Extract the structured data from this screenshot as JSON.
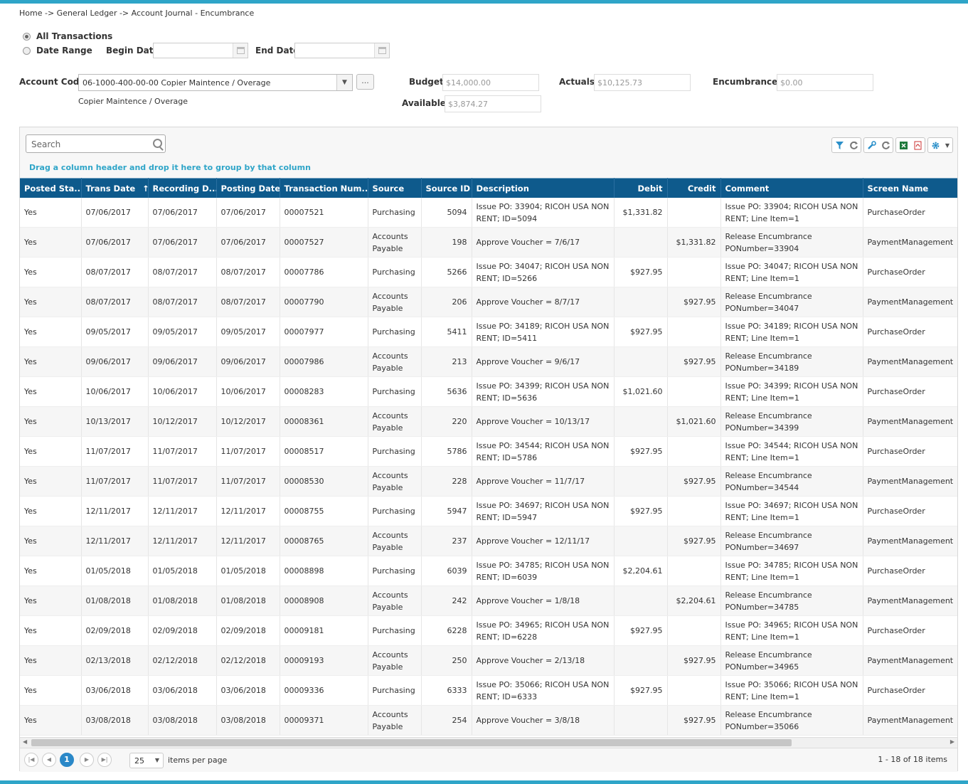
{
  "breadcrumb": "Home -> General Ledger -> Account Journal - Encumbrance",
  "filters": {
    "all_transactions_label": "All Transactions",
    "date_range_label": "Date Range",
    "begin_date_label": "Begin Date",
    "begin_date_value": "",
    "end_date_label": "End Date",
    "end_date_value": "",
    "selected": "All Transactions"
  },
  "account": {
    "label": "Account Code:",
    "value": "06-1000-400-00-00 Copier Maintence / Overage",
    "description": "Copier Maintence / Overage",
    "lookup_button": "..."
  },
  "summary": {
    "budget_label": "Budget:",
    "budget_value": "$14,000.00",
    "actuals_label": "Actuals:",
    "actuals_value": "$10,125.73",
    "encumbrances_label": "Encumbrances:",
    "encumbrances_value": "$0.00",
    "available_label": "Available:",
    "available_value": "$3,874.27"
  },
  "grid": {
    "search_placeholder": "Search",
    "group_hint": "Drag a column header and drop it here to group by that column",
    "toolbar_icons": [
      "filter-icon",
      "refresh-icon",
      "wrench-icon",
      "reset-icon",
      "excel-icon",
      "pdf-icon",
      "gear-icon",
      "chevron-down-icon"
    ],
    "columns": [
      "Posted Sta...",
      "Trans Date",
      "Recording D...",
      "Posting Date",
      "Transaction Num...",
      "Source",
      "Source ID",
      "Description",
      "Debit",
      "Credit",
      "Comment",
      "Screen Name"
    ],
    "sort_indicator": "↑",
    "rows": [
      [
        "Yes",
        "07/06/2017",
        "07/06/2017",
        "07/06/2017",
        "00007521",
        "Purchasing",
        "5094",
        "Issue PO: 33904; RICOH USA NON RENT; ID=5094",
        "$1,331.82",
        "",
        "Issue PO: 33904; RICOH USA NON RENT; Line Item=1",
        "PurchaseOrder"
      ],
      [
        "Yes",
        "07/06/2017",
        "07/06/2017",
        "07/06/2017",
        "00007527",
        "Accounts Payable",
        "198",
        "Approve Voucher = 7/6/17",
        "",
        "$1,331.82",
        "Release Encumbrance PONumber=33904",
        "PaymentManagement"
      ],
      [
        "Yes",
        "08/07/2017",
        "08/07/2017",
        "08/07/2017",
        "00007786",
        "Purchasing",
        "5266",
        "Issue PO: 34047; RICOH USA NON RENT; ID=5266",
        "$927.95",
        "",
        "Issue PO: 34047; RICOH USA NON RENT; Line Item=1",
        "PurchaseOrder"
      ],
      [
        "Yes",
        "08/07/2017",
        "08/07/2017",
        "08/07/2017",
        "00007790",
        "Accounts Payable",
        "206",
        "Approve Voucher = 8/7/17",
        "",
        "$927.95",
        "Release Encumbrance PONumber=34047",
        "PaymentManagement"
      ],
      [
        "Yes",
        "09/05/2017",
        "09/05/2017",
        "09/05/2017",
        "00007977",
        "Purchasing",
        "5411",
        "Issue PO: 34189; RICOH USA NON RENT; ID=5411",
        "$927.95",
        "",
        "Issue PO: 34189; RICOH USA NON RENT; Line Item=1",
        "PurchaseOrder"
      ],
      [
        "Yes",
        "09/06/2017",
        "09/06/2017",
        "09/06/2017",
        "00007986",
        "Accounts Payable",
        "213",
        "Approve Voucher = 9/6/17",
        "",
        "$927.95",
        "Release Encumbrance PONumber=34189",
        "PaymentManagement"
      ],
      [
        "Yes",
        "10/06/2017",
        "10/06/2017",
        "10/06/2017",
        "00008283",
        "Purchasing",
        "5636",
        "Issue PO: 34399; RICOH USA NON RENT; ID=5636",
        "$1,021.60",
        "",
        "Issue PO: 34399; RICOH USA NON RENT; Line Item=1",
        "PurchaseOrder"
      ],
      [
        "Yes",
        "10/13/2017",
        "10/12/2017",
        "10/12/2017",
        "00008361",
        "Accounts Payable",
        "220",
        "Approve Voucher = 10/13/17",
        "",
        "$1,021.60",
        "Release Encumbrance PONumber=34399",
        "PaymentManagement"
      ],
      [
        "Yes",
        "11/07/2017",
        "11/07/2017",
        "11/07/2017",
        "00008517",
        "Purchasing",
        "5786",
        "Issue PO: 34544; RICOH USA NON RENT; ID=5786",
        "$927.95",
        "",
        "Issue PO: 34544; RICOH USA NON RENT; Line Item=1",
        "PurchaseOrder"
      ],
      [
        "Yes",
        "11/07/2017",
        "11/07/2017",
        "11/07/2017",
        "00008530",
        "Accounts Payable",
        "228",
        "Approve Voucher = 11/7/17",
        "",
        "$927.95",
        "Release Encumbrance PONumber=34544",
        "PaymentManagement"
      ],
      [
        "Yes",
        "12/11/2017",
        "12/11/2017",
        "12/11/2017",
        "00008755",
        "Purchasing",
        "5947",
        "Issue PO: 34697; RICOH USA NON RENT; ID=5947",
        "$927.95",
        "",
        "Issue PO: 34697; RICOH USA NON RENT; Line Item=1",
        "PurchaseOrder"
      ],
      [
        "Yes",
        "12/11/2017",
        "12/11/2017",
        "12/11/2017",
        "00008765",
        "Accounts Payable",
        "237",
        "Approve Voucher = 12/11/17",
        "",
        "$927.95",
        "Release Encumbrance PONumber=34697",
        "PaymentManagement"
      ],
      [
        "Yes",
        "01/05/2018",
        "01/05/2018",
        "01/05/2018",
        "00008898",
        "Purchasing",
        "6039",
        "Issue PO: 34785; RICOH USA NON RENT; ID=6039",
        "$2,204.61",
        "",
        "Issue PO: 34785; RICOH USA NON RENT; Line Item=1",
        "PurchaseOrder"
      ],
      [
        "Yes",
        "01/08/2018",
        "01/08/2018",
        "01/08/2018",
        "00008908",
        "Accounts Payable",
        "242",
        "Approve Voucher = 1/8/18",
        "",
        "$2,204.61",
        "Release Encumbrance PONumber=34785",
        "PaymentManagement"
      ],
      [
        "Yes",
        "02/09/2018",
        "02/09/2018",
        "02/09/2018",
        "00009181",
        "Purchasing",
        "6228",
        "Issue PO: 34965; RICOH USA NON RENT; ID=6228",
        "$927.95",
        "",
        "Issue PO: 34965; RICOH USA NON RENT; Line Item=1",
        "PurchaseOrder"
      ],
      [
        "Yes",
        "02/13/2018",
        "02/12/2018",
        "02/12/2018",
        "00009193",
        "Accounts Payable",
        "250",
        "Approve Voucher = 2/13/18",
        "",
        "$927.95",
        "Release Encumbrance PONumber=34965",
        "PaymentManagement"
      ],
      [
        "Yes",
        "03/06/2018",
        "03/06/2018",
        "03/06/2018",
        "00009336",
        "Purchasing",
        "6333",
        "Issue PO: 35066; RICOH USA NON RENT; ID=6333",
        "$927.95",
        "",
        "Issue PO: 35066; RICOH USA NON RENT; Line Item=1",
        "PurchaseOrder"
      ],
      [
        "Yes",
        "03/08/2018",
        "03/08/2018",
        "03/08/2018",
        "00009371",
        "Accounts Payable",
        "254",
        "Approve Voucher = 3/8/18",
        "",
        "$927.95",
        "Release Encumbrance PONumber=35066",
        "PaymentManagement"
      ]
    ]
  },
  "pager": {
    "current_page": "1",
    "page_size": "25",
    "items_per_page_label": "items per page",
    "info": "1 - 18 of 18 items"
  },
  "colors": {
    "accent": "#2fa5c8",
    "header_bg": "#0e5a8c",
    "active_page": "#2a88c8"
  }
}
